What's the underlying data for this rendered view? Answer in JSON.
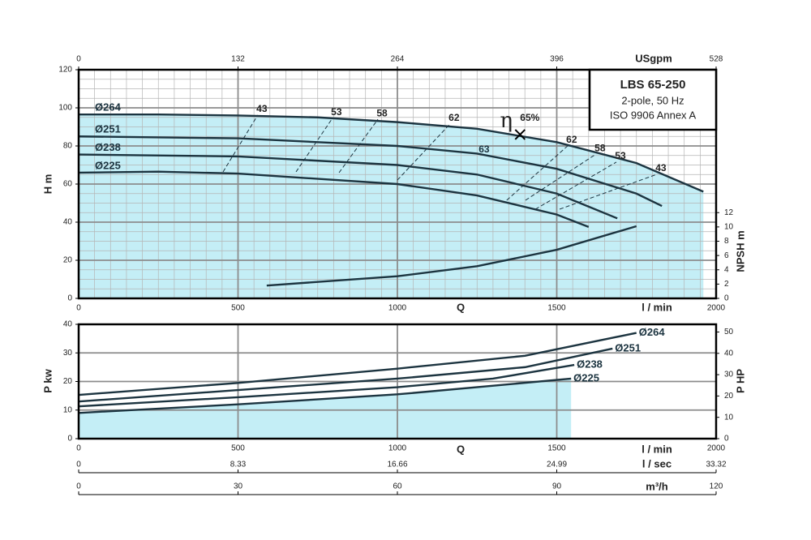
{
  "chart_data": [
    {
      "type": "line",
      "xlabel": "Q",
      "xunit": "l / min",
      "ylabel": "H m",
      "y2label": "NPSH m",
      "x2label": "USgpm",
      "xlim": [
        0,
        2000
      ],
      "xticks": [
        0,
        500,
        1000,
        1500,
        2000
      ],
      "x2lim": [
        0,
        528
      ],
      "x2ticks": [
        0,
        132,
        264,
        396,
        528
      ],
      "ylim": [
        0,
        120
      ],
      "yticks": [
        0,
        20,
        40,
        60,
        80,
        100,
        120
      ],
      "y2lim": [
        0,
        32
      ],
      "y2ticks": [
        0,
        2,
        4,
        6,
        8,
        10,
        12
      ],
      "grid": true,
      "fill": {
        "series": 0,
        "color": "#c4eef6"
      },
      "series": [
        {
          "name": "Ø264",
          "color": "#1c3440",
          "x": [
            0,
            250,
            500,
            750,
            1000,
            1250,
            1500,
            1750,
            1960
          ],
          "values": [
            96.5,
            96.5,
            96,
            95,
            92.5,
            89,
            82,
            71,
            56
          ]
        },
        {
          "name": "Ø251",
          "color": "#1c3440",
          "x": [
            0,
            500,
            1000,
            1250,
            1500,
            1750,
            1830
          ],
          "values": [
            85,
            84,
            80,
            76,
            68,
            55,
            48.5
          ]
        },
        {
          "name": "Ø238",
          "color": "#1c3440",
          "x": [
            0,
            500,
            1000,
            1250,
            1500,
            1690
          ],
          "values": [
            75.5,
            74.5,
            70,
            65,
            55,
            42
          ]
        },
        {
          "name": "Ø225",
          "color": "#1c3440",
          "x": [
            0,
            250,
            500,
            1000,
            1250,
            1500,
            1600
          ],
          "values": [
            66,
            66.5,
            65.5,
            60,
            54,
            44,
            37.5
          ]
        },
        {
          "axis": "y2",
          "color": "#1c3440",
          "x": [
            590,
            1000,
            1250,
            1500,
            1750
          ],
          "values": [
            1.8,
            3.1,
            4.5,
            6.8,
            10.1
          ]
        }
      ],
      "efficiency_lines": [
        {
          "label": "43",
          "x": [
            453,
            562
          ],
          "y": [
            66.4,
            96.2
          ]
        },
        {
          "label": "53",
          "x": [
            682,
            796
          ],
          "y": [
            66.4,
            94.5
          ]
        },
        {
          "label": "58",
          "x": [
            817,
            939
          ],
          "y": [
            66,
            94
          ]
        },
        {
          "label": "62",
          "x": [
            1000,
            1165
          ],
          "y": [
            62.1,
            91.5
          ]
        },
        {
          "label": "62",
          "x": [
            1343,
            1534
          ],
          "y": [
            51.5,
            80
          ]
        },
        {
          "label": "58",
          "x": [
            1402,
            1623
          ],
          "y": [
            51.5,
            75.7
          ]
        },
        {
          "label": "53",
          "x": [
            1433,
            1687
          ],
          "y": [
            46.8,
            71.5
          ]
        },
        {
          "label": "43",
          "x": [
            1509,
            1814
          ],
          "y": [
            46.8,
            65.1
          ]
        }
      ],
      "efficiency_note": {
        "label": "63",
        "x": 1272,
        "y": 78
      },
      "bep": {
        "symbol": "η",
        "label": "65%",
        "x": 1385,
        "y": 86
      },
      "info_box": [
        "LBS 65-250",
        "2-pole, 50 Hz",
        "ISO 9906 Annex A"
      ]
    },
    {
      "type": "line",
      "xlabel": "Q",
      "xunit": "l / min",
      "ylabel": "P kw",
      "y2label": "P HP",
      "xlim": [
        0,
        2000
      ],
      "xticks": [
        0,
        500,
        1000,
        1500,
        2000
      ],
      "ylim": [
        0,
        40
      ],
      "yticks": [
        0,
        10,
        20,
        30,
        40
      ],
      "y2lim": [
        0,
        53.6
      ],
      "y2ticks": [
        0,
        10,
        20,
        30,
        40,
        50
      ],
      "x2label": "l / sec",
      "x2lim": [
        0,
        33.32
      ],
      "x2ticks": [
        0,
        8.33,
        16.66,
        24.99,
        33.32
      ],
      "x3label": "m³/h",
      "x3lim": [
        0,
        120
      ],
      "x3ticks": [
        0,
        30,
        60,
        90,
        120
      ],
      "grid": true,
      "fill": {
        "series": 3,
        "color": "#c4eef6"
      },
      "series": [
        {
          "name": "Ø264",
          "color": "#1c3440",
          "x": [
            0,
            500,
            1000,
            1400,
            1750
          ],
          "values": [
            15.3,
            19.5,
            24.5,
            29,
            37
          ]
        },
        {
          "name": "Ø251",
          "color": "#1c3440",
          "x": [
            0,
            500,
            1000,
            1400,
            1675
          ],
          "values": [
            13,
            17,
            21,
            25,
            31.5
          ]
        },
        {
          "name": "Ø238",
          "color": "#1c3440",
          "x": [
            0,
            500,
            1000,
            1300,
            1555
          ],
          "values": [
            11.3,
            14.5,
            18,
            21,
            25.8
          ]
        },
        {
          "name": "Ø225",
          "color": "#1c3440",
          "x": [
            0,
            500,
            1000,
            1545
          ],
          "values": [
            9,
            12,
            15.5,
            21
          ]
        }
      ]
    }
  ]
}
